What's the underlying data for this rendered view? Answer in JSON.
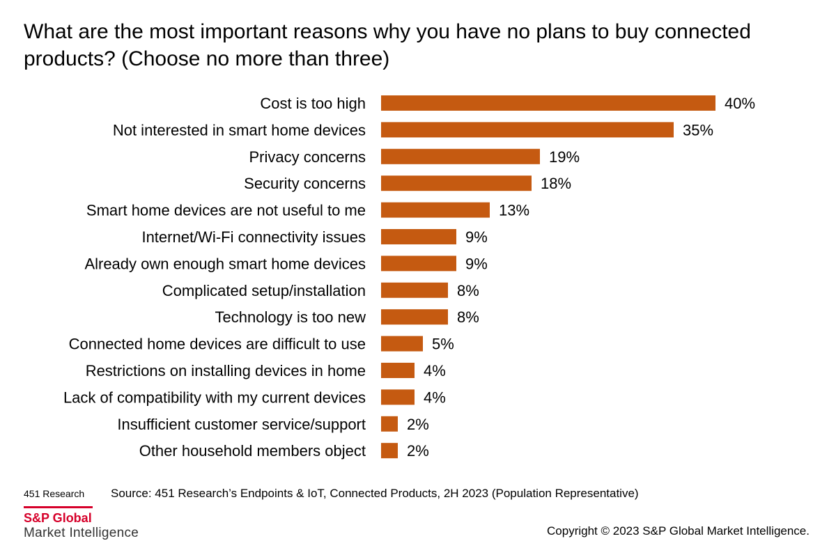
{
  "title": "What are the most important reasons why you have no plans to buy connected products? (Choose no more than three)",
  "footer": {
    "brand": "451 Research",
    "source": "Source: 451 Research’s Endpoints & IoT, Connected Products, 2H 2023 (Population Representative)",
    "copyright": "Copyright © 2023 S&P Global Market Intelligence."
  },
  "logo": {
    "name": "S&P Global",
    "sub": "Market Intelligence"
  },
  "colors": {
    "bar": "#c55a11",
    "logo_red": "#d6002a"
  },
  "chart_data": {
    "type": "bar",
    "orientation": "horizontal",
    "categories": [
      "Cost is too high",
      "Not interested in smart home devices",
      "Privacy concerns",
      "Security concerns",
      "Smart home devices are not useful to me",
      "Internet/Wi-Fi connectivity issues",
      "Already own enough smart home devices",
      "Complicated setup/installation",
      "Technology is too new",
      "Connected home devices are difficult to use",
      "Restrictions on installing devices in home",
      "Lack of compatibility with my current devices",
      "Insufficient customer service/support",
      "Other household members object"
    ],
    "values": [
      40,
      35,
      19,
      18,
      13,
      9,
      9,
      8,
      8,
      5,
      4,
      4,
      2,
      2
    ],
    "value_labels": [
      "40%",
      "35%",
      "19%",
      "18%",
      "13%",
      "9%",
      "9%",
      "8%",
      "8%",
      "5%",
      "4%",
      "4%",
      "2%",
      "2%"
    ],
    "xlim": [
      0,
      40
    ],
    "grid": false,
    "legend": "none"
  }
}
